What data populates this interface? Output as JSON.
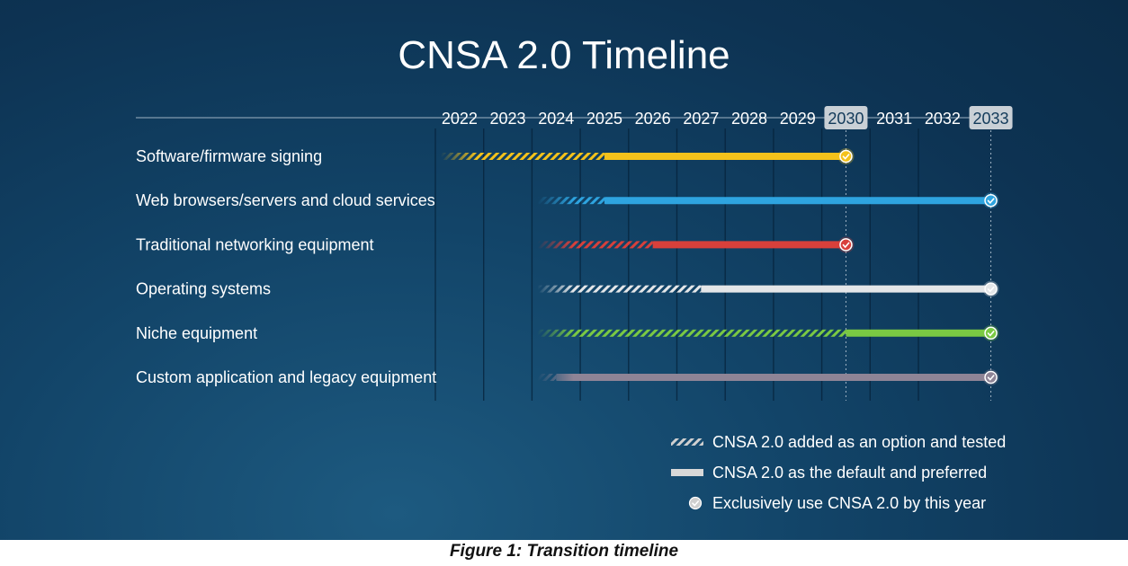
{
  "chart_data": {
    "type": "timeline",
    "title": "CNSA 2.0 Timeline",
    "years": [
      "2022",
      "2023",
      "2024",
      "2025",
      "2026",
      "2027",
      "2028",
      "2029",
      "2030",
      "2031",
      "2032",
      "2033"
    ],
    "highlighted_years": [
      "2030",
      "2033"
    ],
    "rows": [
      {
        "label": "Software/firmware signing",
        "color": "#f4c21b",
        "tested_start": 2022,
        "default_start": 2025,
        "exclusive_by": 2030
      },
      {
        "label": "Web browsers/servers and cloud services",
        "color": "#2ea4e0",
        "tested_start": 2024,
        "default_start": 2025,
        "exclusive_by": 2033
      },
      {
        "label": "Traditional networking equipment",
        "color": "#d8403b",
        "tested_start": 2024,
        "default_start": 2026,
        "exclusive_by": 2030
      },
      {
        "label": "Operating systems",
        "color": "#e4e6e8",
        "tested_start": 2024,
        "default_start": 2027,
        "exclusive_by": 2033
      },
      {
        "label": "Niche equipment",
        "color": "#7ac943",
        "tested_start": 2024,
        "default_start": 2030,
        "exclusive_by": 2033
      },
      {
        "label": "Custom application and legacy equipment",
        "color": "#8e8496",
        "tested_start": 2024,
        "default_start": 2024,
        "exclusive_by": 2033
      }
    ],
    "legend": [
      {
        "type": "hatched",
        "label": "CNSA 2.0 added as an option and tested"
      },
      {
        "type": "solid",
        "label": "CNSA 2.0 as the default and preferred"
      },
      {
        "type": "check",
        "label": "Exclusively use CNSA 2.0 by this year"
      }
    ]
  },
  "caption": "Figure 1: Transition timeline"
}
